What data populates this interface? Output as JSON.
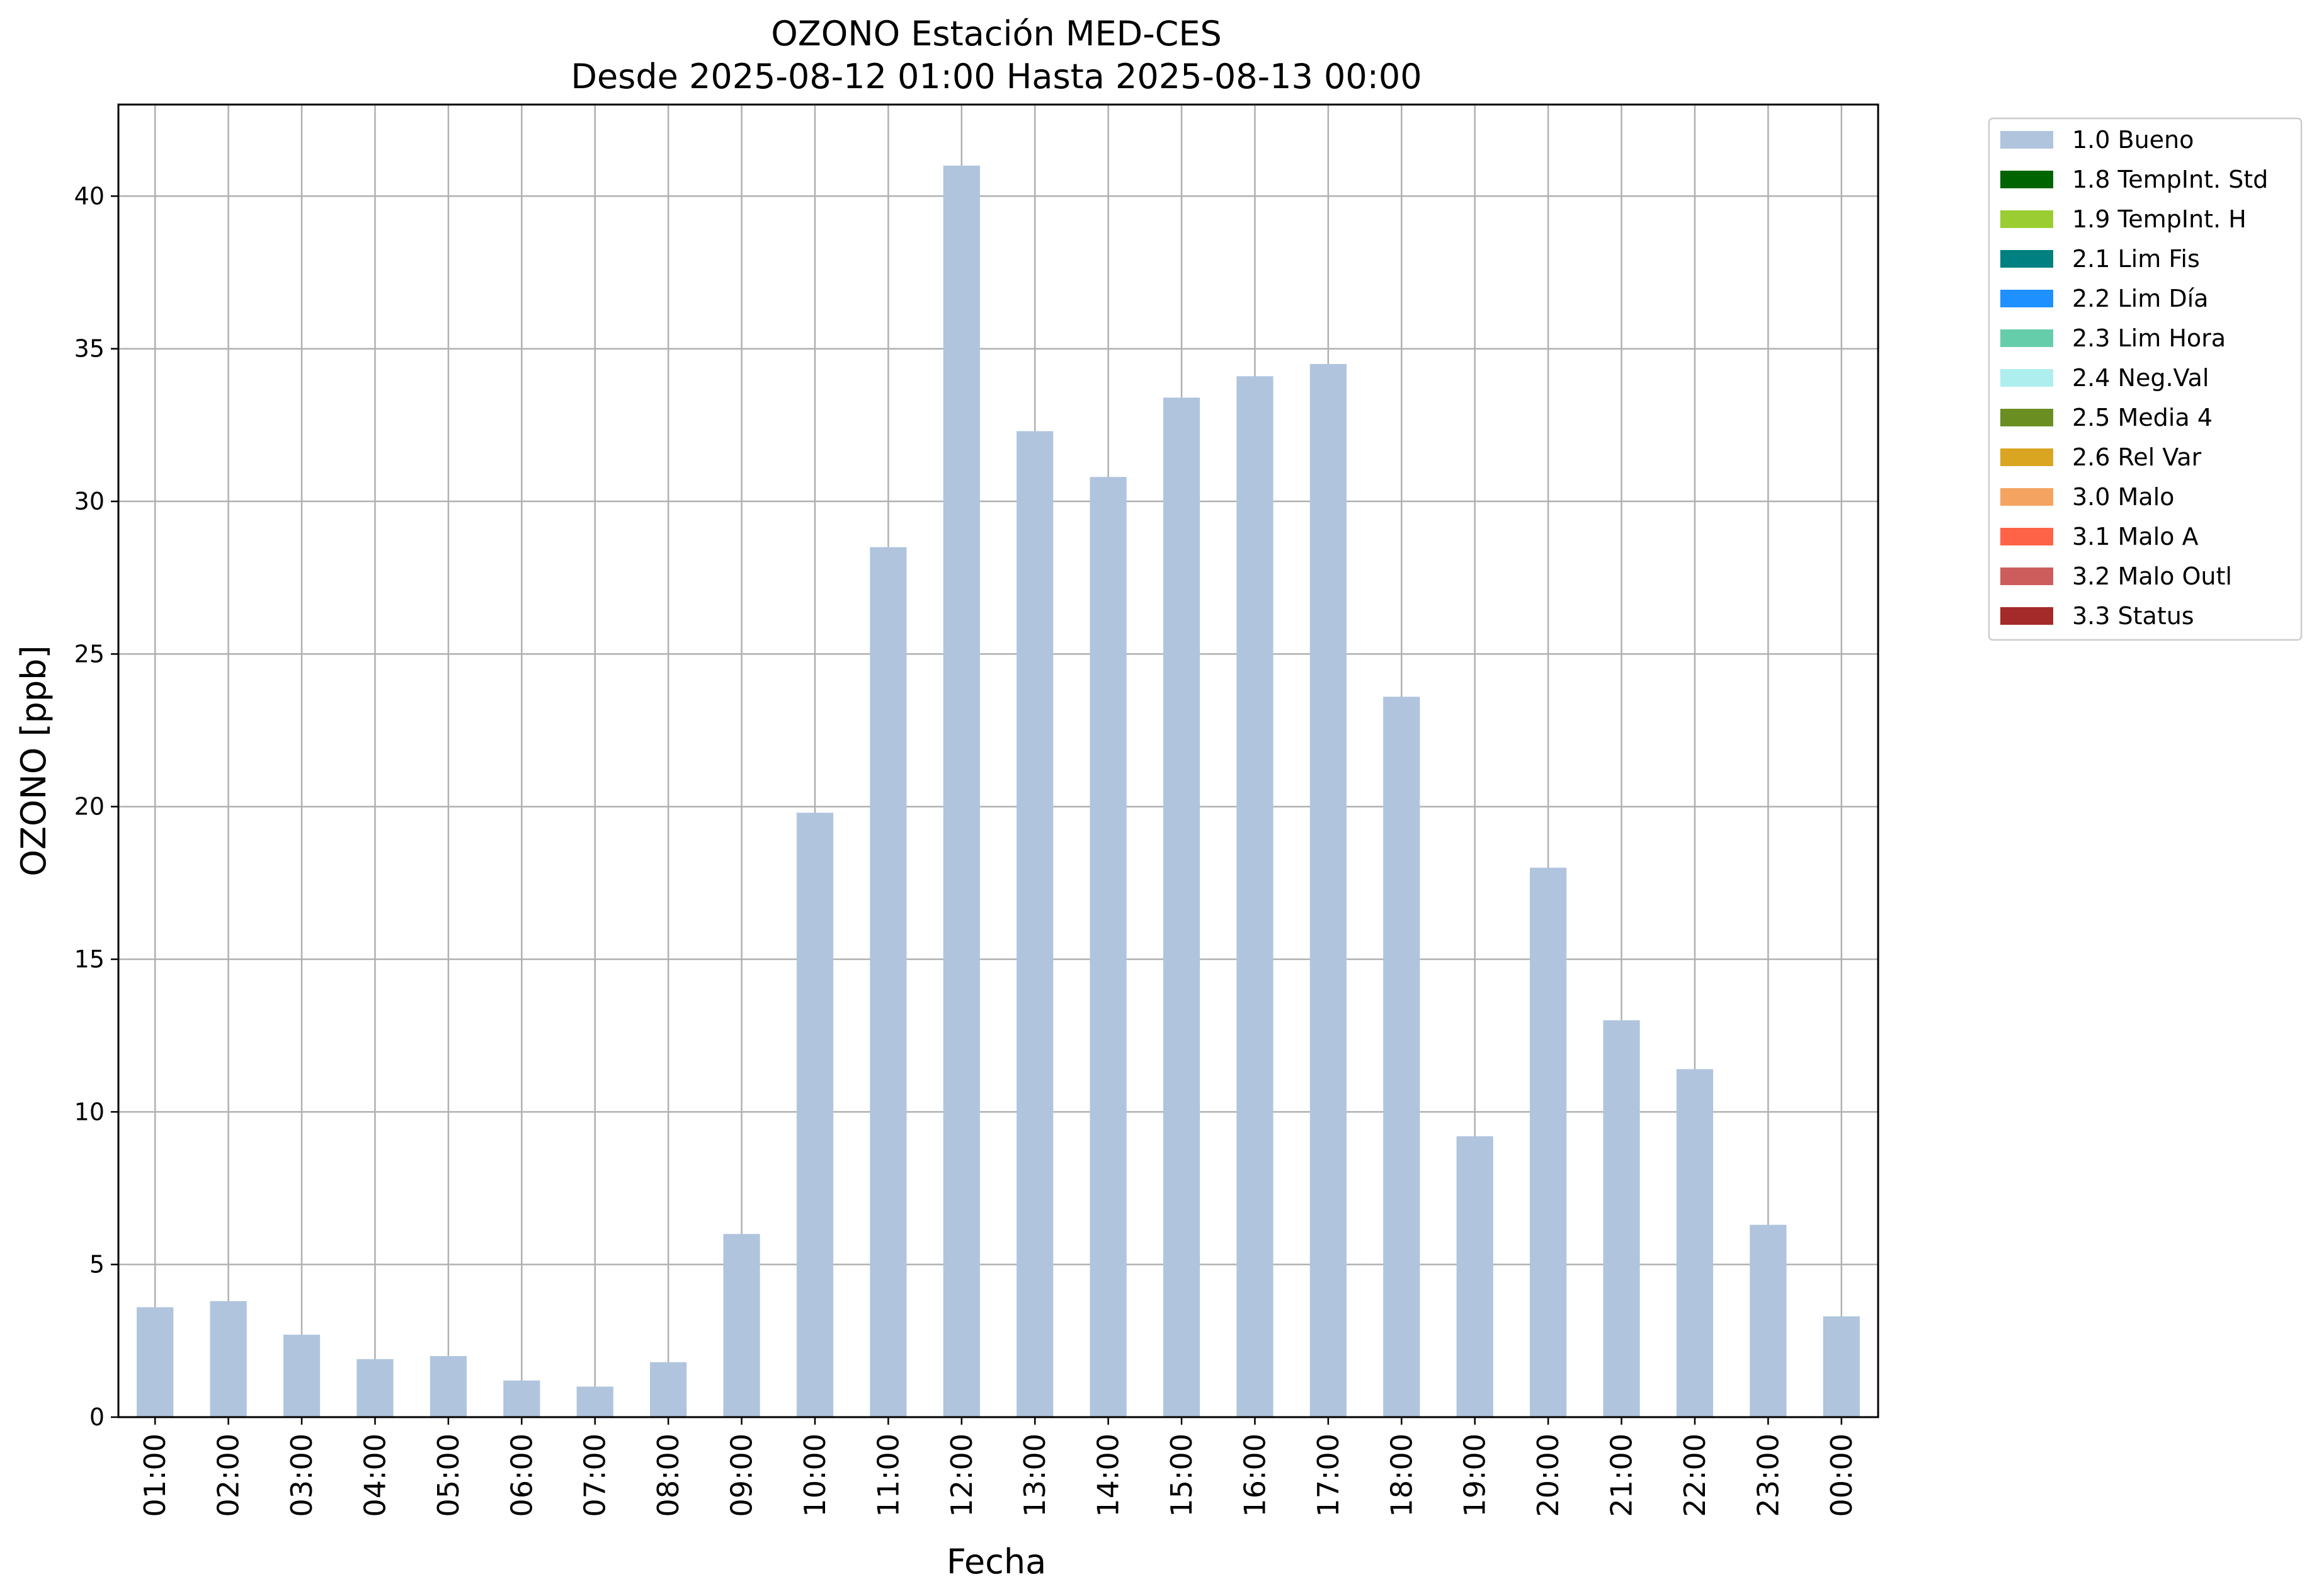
{
  "chart_data": {
    "type": "bar",
    "title": "OZONO Estación MED-CES",
    "subtitle": "Desde 2025-08-12 01:00 Hasta 2025-08-13 00:00",
    "xlabel": "Fecha",
    "ylabel": "OZONO [ppb]",
    "ylim": [
      0,
      43
    ],
    "yticks": [
      0,
      5,
      10,
      15,
      20,
      25,
      30,
      35,
      40
    ],
    "grid": true,
    "legend_position": "outside-top-right",
    "categories": [
      "01:00",
      "02:00",
      "03:00",
      "04:00",
      "05:00",
      "06:00",
      "07:00",
      "08:00",
      "09:00",
      "10:00",
      "11:00",
      "12:00",
      "13:00",
      "14:00",
      "15:00",
      "16:00",
      "17:00",
      "18:00",
      "19:00",
      "20:00",
      "21:00",
      "22:00",
      "23:00",
      "00:00"
    ],
    "series": [
      {
        "name": "1.0 Bueno",
        "color": "#b0c4de",
        "values": [
          3.6,
          3.8,
          2.7,
          1.9,
          2.0,
          1.2,
          1.0,
          1.8,
          6.0,
          19.8,
          28.5,
          41.0,
          32.3,
          30.8,
          33.4,
          34.1,
          34.5,
          23.6,
          9.2,
          18.0,
          13.0,
          11.4,
          6.3,
          3.3
        ]
      }
    ],
    "legend": [
      {
        "label": "1.0 Bueno",
        "color": "#b0c4de"
      },
      {
        "label": "1.8 TempInt. Std",
        "color": "#006400"
      },
      {
        "label": "1.9 TempInt. H",
        "color": "#9acd32"
      },
      {
        "label": "2.1 Lim Fis",
        "color": "#008080"
      },
      {
        "label": "2.2 Lim Día",
        "color": "#1e90ff"
      },
      {
        "label": "2.3 Lim Hora",
        "color": "#66cdaa"
      },
      {
        "label": "2.4 Neg.Val",
        "color": "#afeeee"
      },
      {
        "label": "2.5 Media 4",
        "color": "#6b8e23"
      },
      {
        "label": "2.6 Rel Var",
        "color": "#daa520"
      },
      {
        "label": "3.0 Malo",
        "color": "#f4a460"
      },
      {
        "label": "3.1 Malo A",
        "color": "#ff6347"
      },
      {
        "label": "3.2 Malo Outl",
        "color": "#cd5c5c"
      },
      {
        "label": "3.3 Status",
        "color": "#a52a2a"
      }
    ]
  }
}
